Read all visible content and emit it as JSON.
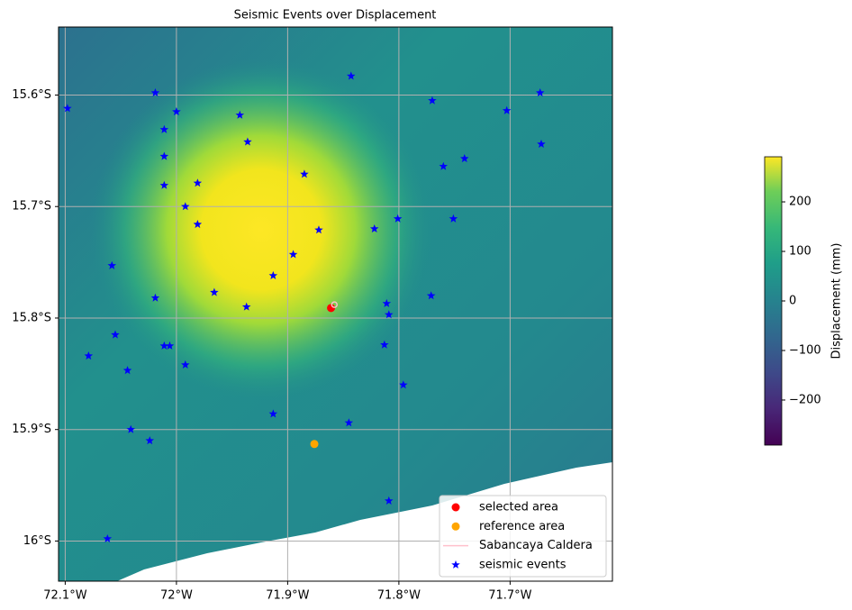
{
  "chart_data": {
    "type": "scatter",
    "title": "Seismic Events over Displacement",
    "xlim": [
      -72.106,
      -71.608
    ],
    "ylim": [
      -16.036,
      -15.539
    ],
    "xticks": [
      {
        "value": -72.1,
        "label": "72.1°W"
      },
      {
        "value": -72.0,
        "label": "72°W"
      },
      {
        "value": -71.9,
        "label": "71.9°W"
      },
      {
        "value": -71.8,
        "label": "71.8°W"
      },
      {
        "value": -71.7,
        "label": "71.7°W"
      }
    ],
    "yticks": [
      {
        "value": -15.6,
        "label": "15.6°S"
      },
      {
        "value": -15.7,
        "label": "15.7°S"
      },
      {
        "value": -15.8,
        "label": "15.8°S"
      },
      {
        "value": -15.9,
        "label": "15.9°S"
      },
      {
        "value": -16.0,
        "label": "16°S"
      }
    ],
    "grid": true,
    "legend": "lower right",
    "series": [
      {
        "name": "selected area",
        "color": "#ff0000",
        "marker": "circle",
        "x": [
          -71.861
        ],
        "y": [
          -15.791
        ]
      },
      {
        "name": "reference area",
        "color": "#ffa500",
        "marker": "circle",
        "x": [
          -71.876
        ],
        "y": [
          -15.913
        ]
      },
      {
        "name": "Sabancaya Caldera",
        "color": "#ffc0cb",
        "marker": "line",
        "x": [
          -71.858
        ],
        "y": [
          -15.788
        ]
      },
      {
        "name": "seismic events",
        "color": "#0000ff",
        "marker": "star",
        "x": [
          -72.098,
          -72.019,
          -72.0,
          -71.943,
          -71.843,
          -71.77,
          -71.673,
          -71.703,
          -72.011,
          -71.936,
          -72.011,
          -71.672,
          -71.741,
          -71.76,
          -71.885,
          -72.011,
          -71.981,
          -71.992,
          -71.981,
          -71.801,
          -71.751,
          -71.822,
          -71.872,
          -72.058,
          -71.895,
          -71.913,
          -71.966,
          -72.019,
          -71.771,
          -71.937,
          -71.811,
          -71.809,
          -72.055,
          -72.011,
          -72.006,
          -71.813,
          -72.079,
          -71.992,
          -72.044,
          -71.796,
          -71.913,
          -71.845,
          -72.041,
          -72.024,
          -71.809,
          -72.062
        ],
        "y": [
          -15.612,
          -15.598,
          -15.615,
          -15.618,
          -15.583,
          -15.605,
          -15.598,
          -15.614,
          -15.631,
          -15.642,
          -15.655,
          -15.644,
          -15.657,
          -15.664,
          -15.671,
          -15.681,
          -15.679,
          -15.7,
          -15.716,
          -15.711,
          -15.711,
          -15.72,
          -15.721,
          -15.753,
          -15.743,
          -15.762,
          -15.777,
          -15.782,
          -15.78,
          -15.79,
          -15.787,
          -15.797,
          -15.815,
          -15.825,
          -15.825,
          -15.824,
          -15.834,
          -15.842,
          -15.847,
          -15.86,
          -15.886,
          -15.894,
          -15.9,
          -15.91,
          -15.964,
          -15.998
        ]
      }
    ],
    "colorbar": {
      "label": "Displacement (mm)",
      "clim": [
        -291,
        291
      ],
      "colormap": "viridis",
      "ticks": [
        {
          "value": -200,
          "label": "−200"
        },
        {
          "value": -100,
          "label": "−100"
        },
        0,
        100,
        200
      ]
    }
  }
}
